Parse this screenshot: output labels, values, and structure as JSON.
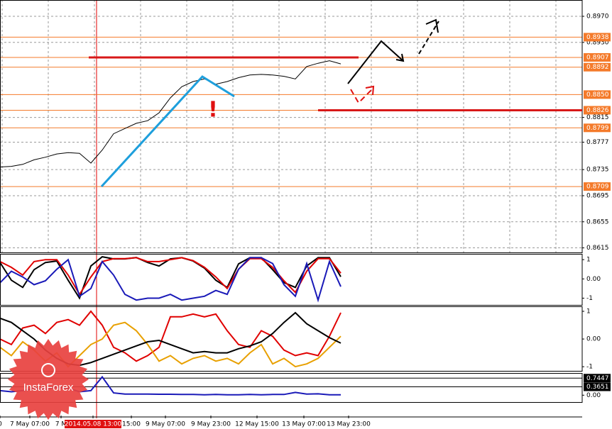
{
  "watermark": "InstaForex",
  "chart_data": [
    {
      "type": "line",
      "grid": true,
      "annotation": "!",
      "ylim": [
        0.8608,
        0.8995
      ],
      "yticks": [
        {
          "value": 0.897,
          "label": "0.8970"
        },
        {
          "value": 0.893,
          "label": "0.8930"
        },
        0.8815,
        0.8777,
        0.8735,
        0.8695,
        0.8655,
        0.8615
      ],
      "levels": [
        0.8938,
        0.8907,
        0.8892,
        {
          "value": 0.885,
          "label": "0.8850"
        },
        0.8826,
        0.8799,
        0.8709
      ],
      "level_color": "#f47a2a",
      "x_labels": [
        "0",
        "7 May 07:00",
        "7 M",
        "2014.05.08 13:00",
        "15:00",
        "9 May 07:00",
        "9 May 23:00",
        "12 May 15:00",
        "13 May 07:00",
        "13 May 23:00"
      ],
      "series": [
        {
          "color": "#000000",
          "values": [
            0.8739,
            0.874,
            0.8743,
            0.875,
            0.8754,
            0.8759,
            0.8761,
            0.876,
            0.8745,
            0.8765,
            0.879,
            0.8798,
            0.8806,
            0.881,
            0.8822,
            0.8845,
            0.8862,
            0.887,
            0.8874,
            0.8866,
            0.887,
            0.8876,
            0.888,
            0.8881,
            0.888,
            0.8878,
            0.8874,
            0.8893,
            0.8898,
            0.8902,
            0.8897
          ]
        }
      ]
    },
    {
      "type": "line",
      "ylim": [
        -1.35,
        1.3
      ],
      "yticks": [
        1,
        {
          "value": 0,
          "label": "0.00"
        },
        -1
      ],
      "series": [
        {
          "color": "#000000",
          "values": [
            0.85,
            -0.07,
            -0.44,
            0.48,
            0.85,
            0.93,
            -0.07,
            -1,
            0.67,
            1.15,
            1.04,
            1.04,
            1.11,
            0.85,
            0.67,
            1.04,
            1.1,
            0.93,
            0.56,
            -0.07,
            -0.44,
            0.78,
            1.1,
            1.1,
            0.48,
            -0.19,
            -0.44,
            0.67,
            1.1,
            1.1,
            0.11
          ]
        },
        {
          "color": "#e00000",
          "values": [
            0.9,
            0.6,
            0.2,
            0.9,
            1.0,
            1.0,
            0.2,
            -0.8,
            0.1,
            0.9,
            1.05,
            1.05,
            1.1,
            0.9,
            0.9,
            1.0,
            1.1,
            0.95,
            0.6,
            0.1,
            -0.5,
            0.5,
            1.05,
            1.05,
            0.6,
            -0.1,
            -0.7,
            0.4,
            1.05,
            1.05,
            0.3
          ]
        },
        {
          "color": "#1a1ab8",
          "values": [
            -0.2,
            0.4,
            0.1,
            -0.3,
            -0.1,
            0.5,
            1.0,
            -0.9,
            -0.5,
            0.9,
            0.2,
            -0.8,
            -1.1,
            -1.0,
            -1.0,
            -0.8,
            -1.1,
            -1.0,
            -0.9,
            -0.6,
            -0.8,
            0.5,
            1.1,
            1.1,
            0.8,
            -0.3,
            -0.9,
            0.8,
            -1.1,
            0.9,
            -0.4
          ]
        }
      ]
    },
    {
      "type": "line",
      "ylim": [
        -1.15,
        1.18
      ],
      "yticks": [
        1,
        {
          "value": 0,
          "label": "0.00"
        },
        -1
      ],
      "series": [
        {
          "color": "#e00000",
          "values": [
            0.0,
            -0.2,
            0.4,
            0.5,
            0.2,
            0.6,
            0.7,
            0.5,
            1.0,
            0.5,
            -0.3,
            -0.5,
            -0.8,
            -0.6,
            -0.3,
            0.8,
            0.8,
            0.9,
            0.8,
            0.9,
            0.3,
            -0.2,
            -0.3,
            0.3,
            0.1,
            -0.4,
            -0.6,
            -0.5,
            -0.6,
            0.1,
            0.95
          ]
        },
        {
          "color": "#e8a000",
          "values": [
            -0.3,
            -0.6,
            -0.1,
            -0.4,
            -0.8,
            -0.5,
            -1.0,
            -0.6,
            -0.2,
            0.0,
            0.5,
            0.6,
            0.3,
            -0.2,
            -0.8,
            -0.6,
            -0.9,
            -0.7,
            -0.6,
            -0.8,
            -0.7,
            -0.9,
            -0.5,
            -0.2,
            -0.9,
            -0.7,
            -1.0,
            -0.9,
            -0.7,
            -0.3,
            0.1
          ]
        },
        {
          "color": "#000000",
          "values": [
            0.75,
            0.6,
            0.3,
            0.0,
            -0.4,
            -0.7,
            -0.9,
            -0.95,
            -0.85,
            -0.7,
            -0.55,
            -0.4,
            -0.25,
            -0.1,
            -0.05,
            -0.2,
            -0.35,
            -0.5,
            -0.45,
            -0.5,
            -0.5,
            -0.35,
            -0.25,
            -0.1,
            0.2,
            0.6,
            0.95,
            0.55,
            0.3,
            0.05,
            -0.15
          ]
        }
      ]
    },
    {
      "type": "line",
      "ylim": [
        -0.3,
        0.97
      ],
      "yticks": [
        {
          "value": 0,
          "label": "0.00"
        }
      ],
      "levels": [
        0.7447,
        0.3651
      ],
      "level_color": "#000000",
      "series": [
        {
          "color": "#1a1ab8",
          "values": [
            0.2,
            0.15,
            0.2,
            0.3,
            0.25,
            0.35,
            0.3,
            0.15,
            0.2,
            0.8,
            0.1,
            0.05,
            0.05,
            0.05,
            0.04,
            0.04,
            0.03,
            0.03,
            0.02,
            0.03,
            0.02,
            0.02,
            0.03,
            0.02,
            0.03,
            0.03,
            0.12,
            0.05,
            0.06,
            0.02,
            0.02
          ]
        }
      ]
    }
  ]
}
